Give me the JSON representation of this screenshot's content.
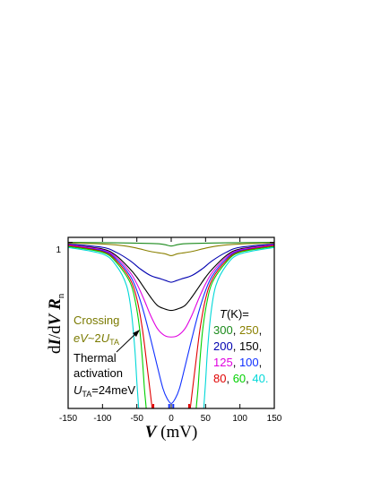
{
  "chart_data": {
    "type": "line",
    "xlabel": {
      "var": "V",
      "unit": " (mV)"
    },
    "ylabel": {
      "d1": "d",
      "i": "I",
      "slash": "/d",
      "v": "V",
      "r": "R",
      "sub": "n"
    },
    "xlim": [
      -150,
      150
    ],
    "ylim": [
      0.0,
      1.03
    ],
    "x_ticks": [
      "-150",
      "-100",
      "-50",
      "0",
      "50",
      "100",
      "150"
    ],
    "y_ticks": [
      "1"
    ],
    "grid": false,
    "legend_title": {
      "T": "T",
      "rest": "(K)="
    },
    "legend_rows": [
      [
        {
          "text": "300",
          "color": "#1a8a1a"
        },
        {
          "text": ", ",
          "color": "#000000"
        },
        {
          "text": "250",
          "color": "#8a8000"
        },
        {
          "text": ",",
          "color": "#000000"
        }
      ],
      [
        {
          "text": "200",
          "color": "#0000b0"
        },
        {
          "text": ", ",
          "color": "#000000"
        },
        {
          "text": "150",
          "color": "#000000"
        },
        {
          "text": ",",
          "color": "#000000"
        }
      ],
      [
        {
          "text": "125",
          "color": "#e000e0"
        },
        {
          "text": ", ",
          "color": "#000000"
        },
        {
          "text": "100",
          "color": "#1030ff"
        },
        {
          "text": ",",
          "color": "#000000"
        }
      ],
      [
        {
          "text": "80",
          "color": "#e00000"
        },
        {
          "text": ", ",
          "color": "#000000"
        },
        {
          "text": "60",
          "color": "#00d000"
        },
        {
          "text": ", ",
          "color": "#000000"
        },
        {
          "text": "40.",
          "color": "#00d8d8"
        }
      ]
    ],
    "annotations": {
      "crossing": {
        "line1": "Crossing",
        "eV": "eV",
        "tilde": "~2",
        "U": "U",
        "sub": "TA",
        "color": "#7a7a00"
      },
      "thermal": {
        "line1": "Thermal",
        "line2": "activation",
        "U": "U",
        "sub": "TA",
        "value": "=24meV",
        "color": "#000000"
      }
    },
    "series": [
      {
        "T": 300,
        "color": "#1a8a1a",
        "x": [
          -150,
          -100,
          -60,
          -30,
          -15,
          -8,
          0,
          8,
          15,
          30,
          60,
          100,
          150
        ],
        "y": [
          1.0,
          0.998,
          0.996,
          0.993,
          0.99,
          0.985,
          0.978,
          0.985,
          0.99,
          0.993,
          0.996,
          0.998,
          1.0
        ]
      },
      {
        "T": 250,
        "color": "#8a8000",
        "x": [
          -150,
          -100,
          -70,
          -50,
          -30,
          -15,
          -8,
          0,
          8,
          15,
          30,
          50,
          70,
          100,
          150
        ],
        "y": [
          0.995,
          0.99,
          0.98,
          0.965,
          0.945,
          0.935,
          0.93,
          0.92,
          0.93,
          0.935,
          0.945,
          0.965,
          0.98,
          0.99,
          0.995
        ]
      },
      {
        "T": 200,
        "color": "#0000b0",
        "x": [
          -150,
          -100,
          -80,
          -60,
          -45,
          -30,
          -15,
          -8,
          0,
          8,
          15,
          30,
          45,
          60,
          80,
          100,
          150
        ],
        "y": [
          0.99,
          0.97,
          0.94,
          0.89,
          0.84,
          0.8,
          0.78,
          0.77,
          0.76,
          0.77,
          0.78,
          0.8,
          0.84,
          0.89,
          0.94,
          0.97,
          0.99
        ]
      },
      {
        "T": 150,
        "color": "#000000",
        "x": [
          -150,
          -100,
          -80,
          -60,
          -50,
          -40,
          -30,
          -20,
          -10,
          0,
          10,
          20,
          30,
          40,
          50,
          60,
          80,
          100,
          150
        ],
        "y": [
          0.985,
          0.96,
          0.92,
          0.84,
          0.79,
          0.73,
          0.67,
          0.62,
          0.6,
          0.59,
          0.6,
          0.62,
          0.67,
          0.73,
          0.79,
          0.84,
          0.92,
          0.96,
          0.985
        ]
      },
      {
        "T": 125,
        "color": "#e000e0",
        "x": [
          -150,
          -100,
          -80,
          -60,
          -50,
          -40,
          -30,
          -20,
          -10,
          0,
          10,
          20,
          30,
          40,
          50,
          60,
          80,
          100,
          150
        ],
        "y": [
          0.985,
          0.955,
          0.91,
          0.82,
          0.75,
          0.66,
          0.56,
          0.48,
          0.44,
          0.43,
          0.44,
          0.48,
          0.56,
          0.66,
          0.75,
          0.82,
          0.91,
          0.955,
          0.985
        ]
      },
      {
        "T": 100,
        "color": "#1030ff",
        "x": [
          -150,
          -100,
          -80,
          -60,
          -50,
          -40,
          -30,
          -20,
          -12,
          -6,
          0,
          6,
          12,
          20,
          30,
          40,
          50,
          60,
          80,
          100,
          150
        ],
        "y": [
          0.98,
          0.95,
          0.9,
          0.8,
          0.71,
          0.58,
          0.42,
          0.25,
          0.12,
          0.06,
          0.03,
          0.06,
          0.12,
          0.25,
          0.42,
          0.58,
          0.71,
          0.8,
          0.9,
          0.95,
          0.98
        ]
      },
      {
        "T": 80,
        "color": "#e00000",
        "x": [
          -150,
          -100,
          -80,
          -60,
          -50,
          -42,
          -35,
          -30,
          -28,
          -27
        ],
        "y": [
          0.98,
          0.945,
          0.89,
          0.78,
          0.66,
          0.48,
          0.25,
          0.08,
          0.01,
          -0.02
        ]
      },
      {
        "T": 80,
        "color": "#e00000",
        "x": [
          27,
          28,
          30,
          35,
          42,
          50,
          60,
          80,
          100,
          150
        ],
        "y": [
          -0.02,
          0.01,
          0.08,
          0.25,
          0.48,
          0.66,
          0.78,
          0.89,
          0.945,
          0.98
        ]
      },
      {
        "T": 60,
        "color": "#00d000",
        "x": [
          -150,
          -100,
          -80,
          -60,
          -52,
          -46,
          -42,
          -39,
          -37,
          -36
        ],
        "y": [
          0.975,
          0.94,
          0.88,
          0.76,
          0.64,
          0.48,
          0.3,
          0.12,
          0.03,
          -0.02
        ]
      },
      {
        "T": 60,
        "color": "#00d000",
        "x": [
          36,
          37,
          39,
          42,
          46,
          52,
          60,
          80,
          100,
          150
        ],
        "y": [
          -0.02,
          0.03,
          0.12,
          0.3,
          0.48,
          0.64,
          0.76,
          0.88,
          0.94,
          0.975
        ]
      },
      {
        "T": 40,
        "color": "#00d8d8",
        "x": [
          -150,
          -100,
          -80,
          -65,
          -58,
          -53,
          -50,
          -48,
          -47
        ],
        "y": [
          0.97,
          0.93,
          0.86,
          0.74,
          0.58,
          0.36,
          0.16,
          0.04,
          -0.02
        ]
      },
      {
        "T": 40,
        "color": "#00d8d8",
        "x": [
          47,
          48,
          50,
          53,
          58,
          65,
          80,
          100,
          150
        ],
        "y": [
          -0.02,
          0.04,
          0.16,
          0.36,
          0.58,
          0.74,
          0.86,
          0.93,
          0.97
        ]
      }
    ],
    "markers_at_baseline": [
      {
        "x": -26,
        "color": "#e00000"
      },
      {
        "x": -3,
        "color": "#1030ff"
      },
      {
        "x": 3,
        "color": "#1030ff"
      },
      {
        "x": 26,
        "color": "#e00000"
      }
    ]
  }
}
